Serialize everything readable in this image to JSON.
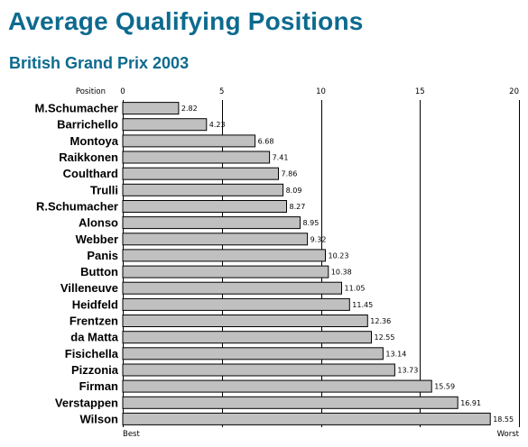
{
  "title": "Average Qualifying Positions",
  "subtitle": "British Grand Prix 2003",
  "chart_data": {
    "type": "bar",
    "orientation": "horizontal",
    "title": "Average Qualifying Positions",
    "subtitle": "British Grand Prix 2003",
    "xlabel": "Position",
    "xlim": [
      0,
      20
    ],
    "xticks": [
      0,
      5,
      10,
      15,
      20
    ],
    "x_min_label": "Best",
    "x_max_label": "Worst",
    "grid": true,
    "bar_color": "#c0c0c0",
    "categories": [
      "M.Schumacher",
      "Barrichello",
      "Montoya",
      "Raikkonen",
      "Coulthard",
      "Trulli",
      "R.Schumacher",
      "Alonso",
      "Webber",
      "Panis",
      "Button",
      "Villeneuve",
      "Heidfeld",
      "Frentzen",
      "da Matta",
      "Fisichella",
      "Pizzonia",
      "Firman",
      "Verstappen",
      "Wilson"
    ],
    "values": [
      2.82,
      4.23,
      6.68,
      7.41,
      7.86,
      8.09,
      8.27,
      8.95,
      9.32,
      10.23,
      10.38,
      11.05,
      11.45,
      12.36,
      12.55,
      13.14,
      13.73,
      15.59,
      16.91,
      18.55
    ],
    "value_labels": [
      "2.82",
      "4.23",
      "6.68",
      "7.41",
      "7.86",
      "8.09",
      "8.27",
      "8.95",
      "9.32",
      "10.23",
      "10.38",
      "11.05",
      "11.45",
      "12.36",
      "12.55",
      "13.14",
      "13.73",
      "15.59",
      "16.91",
      "18.55"
    ]
  }
}
